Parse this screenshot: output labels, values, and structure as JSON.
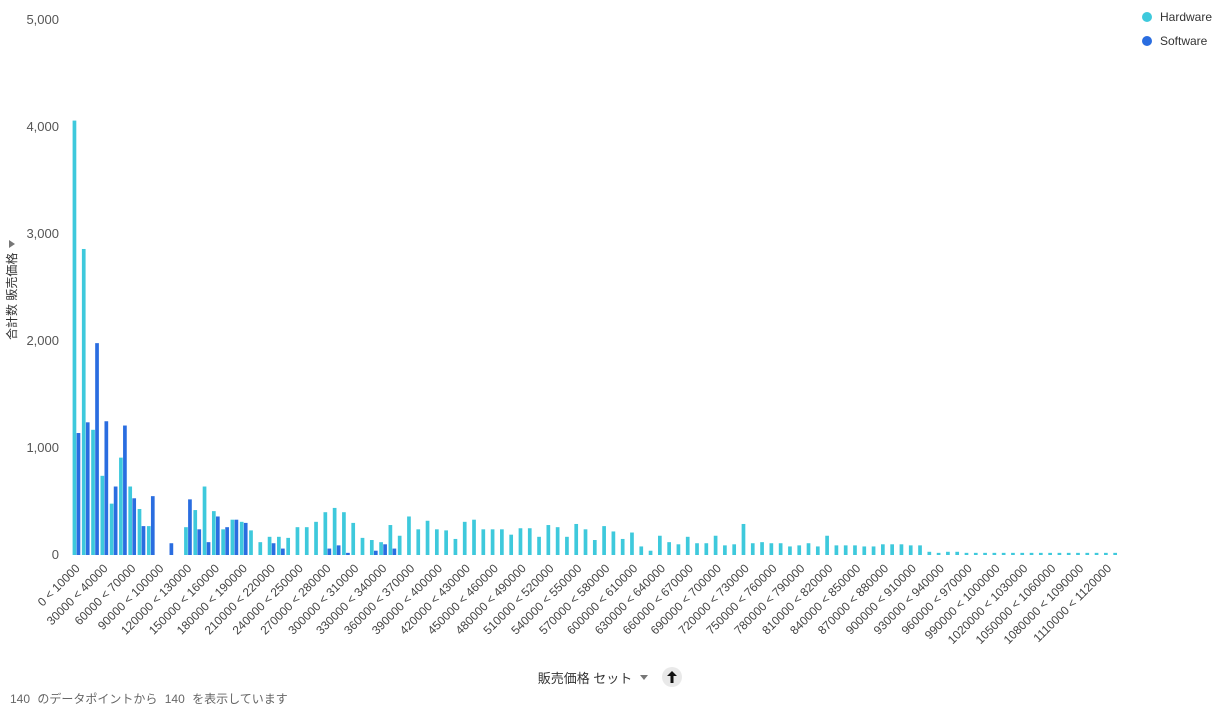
{
  "chart_data": {
    "type": "bar",
    "ylabel": "合計数 販売価格",
    "xlabel": "販売価格 セット",
    "ylim": [
      0,
      5000
    ],
    "yticks": [
      "0",
      "1,000",
      "2,000",
      "3,000",
      "4,000",
      "5,000"
    ],
    "legend_position": "top-right",
    "categories": [
      "0 < 10000",
      "10000 < 20000",
      "20000 < 30000",
      "30000 < 40000",
      "40000 < 50000",
      "50000 < 60000",
      "60000 < 70000",
      "70000 < 80000",
      "80000 < 90000",
      "90000 < 100000",
      "100000 < 110000",
      "110000 < 120000",
      "120000 < 130000",
      "130000 < 140000",
      "140000 < 150000",
      "150000 < 160000",
      "160000 < 170000",
      "170000 < 180000",
      "180000 < 190000",
      "190000 < 200000",
      "200000 < 210000",
      "210000 < 220000",
      "220000 < 230000",
      "230000 < 240000",
      "240000 < 250000",
      "250000 < 260000",
      "260000 < 270000",
      "270000 < 280000",
      "280000 < 290000",
      "290000 < 300000",
      "300000 < 310000",
      "310000 < 320000",
      "320000 < 330000",
      "330000 < 340000",
      "340000 < 350000",
      "350000 < 360000",
      "360000 < 370000",
      "370000 < 380000",
      "380000 < 390000",
      "390000 < 400000",
      "400000 < 410000",
      "410000 < 420000",
      "420000 < 430000",
      "430000 < 440000",
      "440000 < 450000",
      "450000 < 460000",
      "460000 < 470000",
      "470000 < 480000",
      "480000 < 490000",
      "490000 < 500000",
      "500000 < 510000",
      "510000 < 520000",
      "520000 < 530000",
      "530000 < 540000",
      "540000 < 550000",
      "550000 < 560000",
      "560000 < 570000",
      "570000 < 580000",
      "580000 < 590000",
      "590000 < 600000",
      "600000 < 610000",
      "610000 < 620000",
      "620000 < 630000",
      "630000 < 640000",
      "640000 < 650000",
      "650000 < 660000",
      "660000 < 670000",
      "670000 < 680000",
      "680000 < 690000",
      "690000 < 700000",
      "700000 < 710000",
      "710000 < 720000",
      "720000 < 730000",
      "730000 < 740000",
      "740000 < 750000",
      "750000 < 760000",
      "760000 < 770000",
      "770000 < 780000",
      "780000 < 790000",
      "790000 < 800000",
      "800000 < 810000",
      "810000 < 820000",
      "820000 < 830000",
      "830000 < 840000",
      "840000 < 850000",
      "850000 < 860000",
      "860000 < 870000",
      "870000 < 880000",
      "880000 < 890000",
      "890000 < 900000",
      "900000 < 910000",
      "910000 < 920000",
      "920000 < 930000",
      "930000 < 940000",
      "940000 < 950000",
      "950000 < 960000",
      "960000 < 970000",
      "970000 < 980000",
      "980000 < 990000",
      "990000 < 1000000",
      "1000000 < 1010000",
      "1010000 < 1020000",
      "1020000 < 1030000",
      "1030000 < 1040000",
      "1040000 < 1050000",
      "1050000 < 1060000",
      "1060000 < 1070000",
      "1070000 < 1080000",
      "1080000 < 1090000",
      "1090000 < 1100000",
      "1100000 < 1110000",
      "1110000 < 1120000",
      "1120000 < 1130000"
    ],
    "x_tick_labels_shown": [
      "0 < 10000",
      "30000 < 40000",
      "60000 < 70000",
      "90000 < 100000",
      "120000 < 130000",
      "150000 < 160000",
      "180000 < 190000",
      "210000 < 220000",
      "240000 < 250000",
      "270000 < 280000",
      "300000 < 310000",
      "330000 < 340000",
      "360000 < 370000",
      "390000 < 400000",
      "420000 < 430000",
      "450000 < 460000",
      "480000 < 490000",
      "510000 < 520000",
      "540000 < 550000",
      "570000 < 580000",
      "600000 < 610000",
      "630000 < 640000",
      "660000 < 670000",
      "690000 < 700000",
      "720000 < 730000",
      "750000 < 760000",
      "780000 < 790000",
      "810000 < 820000",
      "840000 < 850000",
      "870000 < 880000",
      "900000 < 910000",
      "930000 < 940000",
      "960000 < 970000",
      "990000 < 1000000",
      "1020000 < 1030000",
      "1050000 < 1060000",
      "1080000 < 1090000",
      "1110000 < 1120000"
    ],
    "series": [
      {
        "name": "Hardware",
        "color": "#3ec9dc",
        "values": [
          4060,
          2860,
          1170,
          740,
          480,
          910,
          640,
          430,
          270,
          0,
          0,
          0,
          260,
          420,
          640,
          410,
          240,
          330,
          310,
          230,
          120,
          170,
          170,
          160,
          260,
          260,
          310,
          400,
          440,
          400,
          300,
          160,
          140,
          120,
          280,
          180,
          360,
          240,
          320,
          240,
          230,
          150,
          310,
          330,
          240,
          240,
          240,
          190,
          250,
          250,
          170,
          280,
          260,
          170,
          290,
          240,
          140,
          270,
          220,
          150,
          210,
          80,
          40,
          180,
          120,
          100,
          170,
          110,
          110,
          180,
          90,
          100,
          290,
          110,
          120,
          110,
          110,
          80,
          90,
          110,
          80,
          180,
          90,
          90,
          90,
          80,
          80,
          100,
          100,
          100,
          90,
          90,
          30,
          20,
          30,
          30,
          20,
          20,
          20,
          20,
          20,
          20,
          20,
          20,
          20,
          20,
          20,
          20,
          20,
          20,
          20,
          20,
          20
        ]
      },
      {
        "name": "Software",
        "color": "#2a6de0",
        "values": [
          1140,
          1240,
          1980,
          1250,
          640,
          1210,
          530,
          270,
          550,
          0,
          110,
          0,
          520,
          240,
          120,
          360,
          260,
          330,
          300,
          0,
          0,
          110,
          60,
          0,
          0,
          0,
          0,
          60,
          90,
          20,
          0,
          0,
          40,
          100,
          60,
          0,
          0,
          0,
          0,
          0,
          0,
          0,
          0,
          0,
          0,
          0,
          0,
          0,
          0,
          0,
          0,
          0,
          0,
          0,
          0,
          0,
          0,
          0,
          0,
          0,
          0,
          0,
          0,
          0,
          0,
          0,
          0,
          0,
          0,
          0,
          0,
          0,
          0,
          0,
          0,
          0,
          0,
          0,
          0,
          0,
          0,
          0,
          0,
          0,
          0,
          0,
          0,
          0,
          0,
          0,
          0,
          0,
          0,
          0,
          0,
          0,
          0,
          0,
          0,
          0,
          0,
          0,
          0,
          0,
          0,
          0,
          0,
          0,
          0,
          0,
          0,
          0,
          0
        ]
      }
    ]
  },
  "legend": {
    "items": [
      {
        "label": "Hardware",
        "color": "#3ec9dc"
      },
      {
        "label": "Software",
        "color": "#2a6de0"
      }
    ]
  },
  "axis": {
    "y_title": "合計数 販売価格",
    "x_title": "販売価格 セット"
  },
  "footer": {
    "shown_count": "140",
    "text_mid": "のデータポイントから",
    "total_count": "140",
    "text_end": "を表示しています"
  }
}
